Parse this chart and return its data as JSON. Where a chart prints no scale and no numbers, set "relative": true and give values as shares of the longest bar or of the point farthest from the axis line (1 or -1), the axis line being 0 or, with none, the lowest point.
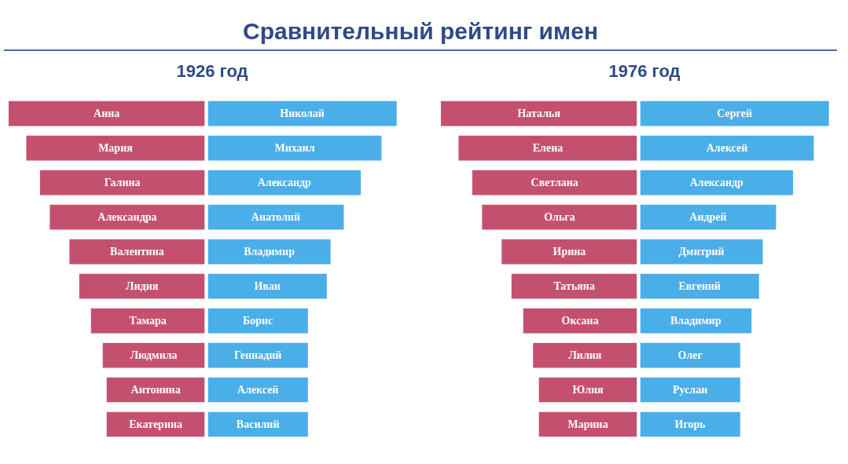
{
  "chart_data": [
    {
      "type": "bar",
      "orientation": "horizontal",
      "relative": true,
      "title": "1926 год",
      "annotations": [
        "Сравнительный рейтинг имен"
      ],
      "color": "#c4506f",
      "categories": [
        "Анна",
        "Мария",
        "Галина",
        "Александра",
        "Валентина",
        "Лидия",
        "Тамара",
        "Людмила",
        "Антонина",
        "Екатерина"
      ],
      "values": [
        -1,
        -0.91,
        -0.84,
        -0.79,
        -0.69,
        -0.64,
        -0.58,
        -0.52,
        -0.5,
        -0.5
      ]
    },
    {
      "type": "bar",
      "orientation": "horizontal",
      "relative": true,
      "color": "#4aaee8",
      "categories": [
        "Николай",
        "Михаил",
        "Александр",
        "Анатолий",
        "Владимир",
        "Иван",
        "Борис",
        "Геннадий",
        "Алексей",
        "Василий"
      ],
      "values": [
        1,
        0.92,
        0.81,
        0.72,
        0.65,
        0.63,
        0.53,
        0.53,
        0.53,
        0.53
      ]
    },
    {
      "type": "bar",
      "orientation": "horizontal",
      "relative": true,
      "title": "1976 год",
      "color": "#c4506f",
      "categories": [
        "Наталья",
        "Елена",
        "Светлана",
        "Ольга",
        "Ирина",
        "Татьяна",
        "Оксана",
        "Лилия",
        "Юлия",
        "Марина"
      ],
      "values": [
        -1,
        -0.91,
        -0.84,
        -0.79,
        -0.69,
        -0.64,
        -0.58,
        -0.53,
        -0.5,
        -0.5
      ]
    },
    {
      "type": "bar",
      "orientation": "horizontal",
      "relative": true,
      "color": "#4aaee8",
      "categories": [
        "Сергей",
        "Алексей",
        "Александр",
        "Андрей",
        "Дмитрий",
        "Евгений",
        "Владимир",
        "Олег",
        "Руслан",
        "Игорь"
      ],
      "values": [
        1,
        0.92,
        0.81,
        0.72,
        0.65,
        0.63,
        0.59,
        0.53,
        0.53,
        0.53
      ]
    }
  ]
}
